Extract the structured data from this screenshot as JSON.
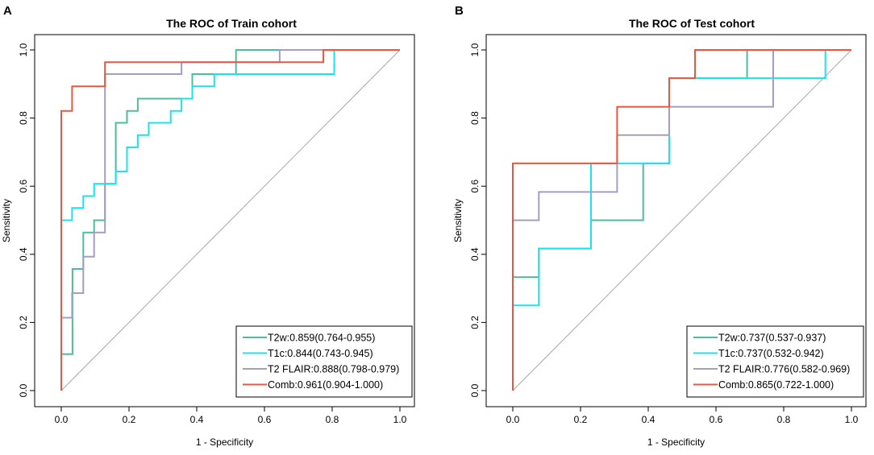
{
  "chart_data": [
    {
      "type": "line",
      "panel_label": "A",
      "title": "The ROC of Train cohort",
      "xlabel": "1 - Specificity",
      "ylabel": "Sensitivity",
      "xlim": [
        0,
        1
      ],
      "ylim": [
        0,
        1
      ],
      "x_ticks": [
        "0.0",
        "0.2",
        "0.4",
        "0.6",
        "0.8",
        "1.0"
      ],
      "y_ticks": [
        "0.0",
        "0.2",
        "0.4",
        "0.6",
        "0.8",
        "1.0"
      ],
      "diagonal": true,
      "legend_position": "bottom-right",
      "series": [
        {
          "name": "T2w",
          "legend": "T2w:0.859(0.764-0.955)",
          "color": "#4dbd9a",
          "points": [
            [
              0,
              0
            ],
            [
              0,
              0.107
            ],
            [
              0.033,
              0.107
            ],
            [
              0.033,
              0.357
            ],
            [
              0.065,
              0.357
            ],
            [
              0.065,
              0.464
            ],
            [
              0.097,
              0.464
            ],
            [
              0.097,
              0.5
            ],
            [
              0.129,
              0.5
            ],
            [
              0.129,
              0.607
            ],
            [
              0.161,
              0.607
            ],
            [
              0.161,
              0.786
            ],
            [
              0.194,
              0.786
            ],
            [
              0.194,
              0.821
            ],
            [
              0.226,
              0.821
            ],
            [
              0.226,
              0.857
            ],
            [
              0.387,
              0.857
            ],
            [
              0.387,
              0.929
            ],
            [
              0.516,
              0.929
            ],
            [
              0.516,
              1.0
            ],
            [
              1.0,
              1.0
            ]
          ]
        },
        {
          "name": "T1c",
          "legend": "T1c:0.844(0.743-0.945)",
          "color": "#19e4ee",
          "points": [
            [
              0,
              0
            ],
            [
              0,
              0.5
            ],
            [
              0.032,
              0.5
            ],
            [
              0.032,
              0.536
            ],
            [
              0.065,
              0.536
            ],
            [
              0.065,
              0.571
            ],
            [
              0.097,
              0.571
            ],
            [
              0.097,
              0.607
            ],
            [
              0.161,
              0.607
            ],
            [
              0.161,
              0.643
            ],
            [
              0.194,
              0.643
            ],
            [
              0.194,
              0.714
            ],
            [
              0.226,
              0.714
            ],
            [
              0.226,
              0.75
            ],
            [
              0.258,
              0.75
            ],
            [
              0.258,
              0.786
            ],
            [
              0.323,
              0.786
            ],
            [
              0.323,
              0.821
            ],
            [
              0.355,
              0.821
            ],
            [
              0.355,
              0.857
            ],
            [
              0.387,
              0.857
            ],
            [
              0.387,
              0.893
            ],
            [
              0.452,
              0.893
            ],
            [
              0.452,
              0.929
            ],
            [
              0.806,
              0.929
            ],
            [
              0.806,
              1.0
            ],
            [
              1.0,
              1.0
            ]
          ]
        },
        {
          "name": "T2 FLAIR",
          "legend": "T2 FLAIR:0.888(0.798-0.979)",
          "color": "#a49ec6",
          "points": [
            [
              0,
              0
            ],
            [
              0,
              0.214
            ],
            [
              0.032,
              0.214
            ],
            [
              0.032,
              0.286
            ],
            [
              0.065,
              0.286
            ],
            [
              0.065,
              0.393
            ],
            [
              0.097,
              0.393
            ],
            [
              0.097,
              0.464
            ],
            [
              0.129,
              0.464
            ],
            [
              0.129,
              0.929
            ],
            [
              0.355,
              0.929
            ],
            [
              0.355,
              0.964
            ],
            [
              0.645,
              0.964
            ],
            [
              0.645,
              1.0
            ],
            [
              1.0,
              1.0
            ]
          ]
        },
        {
          "name": "Comb",
          "legend": "Comb:0.961(0.904-1.000)",
          "color": "#f0543e",
          "points": [
            [
              0,
              0
            ],
            [
              0,
              0.821
            ],
            [
              0.032,
              0.821
            ],
            [
              0.032,
              0.893
            ],
            [
              0.129,
              0.893
            ],
            [
              0.129,
              0.964
            ],
            [
              0.774,
              0.964
            ],
            [
              0.774,
              1.0
            ],
            [
              1.0,
              1.0
            ]
          ]
        }
      ]
    },
    {
      "type": "line",
      "panel_label": "B",
      "title": "The ROC of Test cohort",
      "xlabel": "1 - Specificity",
      "ylabel": "Sensitivity",
      "xlim": [
        0,
        1
      ],
      "ylim": [
        0,
        1
      ],
      "x_ticks": [
        "0.0",
        "0.2",
        "0.4",
        "0.6",
        "0.8",
        "1.0"
      ],
      "y_ticks": [
        "0.0",
        "0.2",
        "0.4",
        "0.6",
        "0.8",
        "1.0"
      ],
      "diagonal": true,
      "legend_position": "bottom-right",
      "series": [
        {
          "name": "T2w",
          "legend": "T2w:0.737(0.537-0.937)",
          "color": "#4dbd9a",
          "points": [
            [
              0,
              0
            ],
            [
              0,
              0.333
            ],
            [
              0.077,
              0.333
            ],
            [
              0.077,
              0.417
            ],
            [
              0.231,
              0.417
            ],
            [
              0.231,
              0.5
            ],
            [
              0.385,
              0.5
            ],
            [
              0.385,
              0.667
            ],
            [
              0.462,
              0.667
            ],
            [
              0.462,
              0.917
            ],
            [
              0.692,
              0.917
            ],
            [
              0.692,
              1.0
            ],
            [
              1.0,
              1.0
            ]
          ]
        },
        {
          "name": "T1c",
          "legend": "T1c:0.737(0.532-0.942)",
          "color": "#19e4ee",
          "points": [
            [
              0,
              0
            ],
            [
              0,
              0.25
            ],
            [
              0.077,
              0.25
            ],
            [
              0.077,
              0.417
            ],
            [
              0.231,
              0.417
            ],
            [
              0.231,
              0.667
            ],
            [
              0.462,
              0.667
            ],
            [
              0.462,
              0.917
            ],
            [
              0.923,
              0.917
            ],
            [
              0.923,
              1.0
            ],
            [
              1.0,
              1.0
            ]
          ]
        },
        {
          "name": "T2 FLAIR",
          "legend": "T2 FLAIR:0.776(0.582-0.969)",
          "color": "#a49ec6",
          "points": [
            [
              0,
              0
            ],
            [
              0,
              0.5
            ],
            [
              0.077,
              0.5
            ],
            [
              0.077,
              0.583
            ],
            [
              0.308,
              0.583
            ],
            [
              0.308,
              0.75
            ],
            [
              0.462,
              0.75
            ],
            [
              0.462,
              0.833
            ],
            [
              0.769,
              0.833
            ],
            [
              0.769,
              1.0
            ],
            [
              1.0,
              1.0
            ]
          ]
        },
        {
          "name": "Comb",
          "legend": "Comb:0.865(0.722-1.000)",
          "color": "#f0543e",
          "points": [
            [
              0,
              0
            ],
            [
              0,
              0.667
            ],
            [
              0.308,
              0.667
            ],
            [
              0.308,
              0.833
            ],
            [
              0.462,
              0.833
            ],
            [
              0.462,
              0.917
            ],
            [
              0.538,
              0.917
            ],
            [
              0.538,
              1.0
            ],
            [
              1.0,
              1.0
            ]
          ]
        }
      ]
    }
  ]
}
